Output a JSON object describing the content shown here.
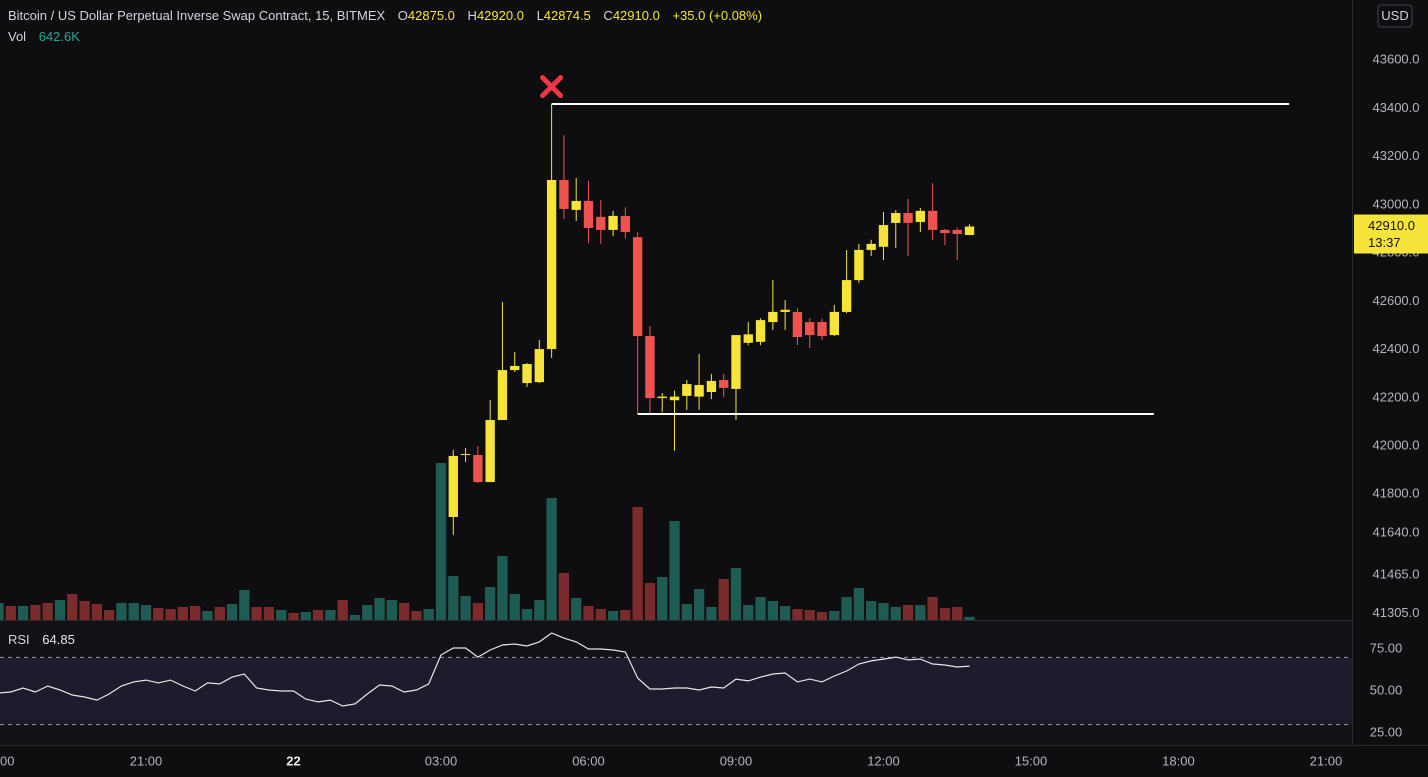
{
  "chart_data": {
    "type": "candlestick",
    "title": "Bitcoin / US Dollar Perpetual Inverse Swap Contract, 15, BITMEX",
    "ohlc_legend": [
      {
        "key": "O",
        "value": "42875.0"
      },
      {
        "key": "H",
        "value": "42920.0"
      },
      {
        "key": "L",
        "value": "42874.5"
      },
      {
        "key": "C",
        "value": "42910.0"
      }
    ],
    "change": "+35.0 (+0.08%)",
    "currency": "USD",
    "up_color": "#f7e43a",
    "down_color": "#ef5350",
    "x": [
      27.25,
      27.5,
      27.75,
      28,
      28.25,
      28.5,
      28.75,
      29,
      29.25,
      29.5,
      29.75,
      30,
      30.25,
      30.5,
      30.75,
      31,
      31.25,
      31.5,
      31.75,
      32,
      32.25,
      32.5,
      32.75,
      33,
      33.25,
      33.5,
      33.75,
      34,
      34.25,
      34.5,
      34.75,
      35,
      35.25,
      35.5,
      35.75,
      36,
      36.25,
      36.5,
      36.75,
      37,
      37.25,
      37.5,
      37.75
    ],
    "open": [
      41706,
      41963,
      41963,
      41851,
      42108,
      42315,
      42261,
      42265,
      42402,
      43103,
      42979,
      43016,
      42950,
      42896,
      42954,
      42866,
      42456,
      42199,
      42190,
      42208,
      42205,
      42224,
      42274,
      42237,
      42428,
      42432,
      42514,
      42556,
      42556,
      42514,
      42514,
      42460,
      42556,
      42688,
      42813,
      42826,
      42925,
      42966,
      42929,
      42975,
      42896,
      42896,
      42875
    ],
    "high": [
      41984,
      41992,
      42000,
      42191,
      42597,
      42390,
      42344,
      42440,
      43418,
      43289,
      43111,
      43099,
      43020,
      42975,
      42990,
      42887,
      42497,
      42220,
      42230,
      42274,
      42382,
      42299,
      42299,
      42460,
      42514,
      42530,
      42688,
      42605,
      42572,
      42530,
      42528,
      42585,
      42813,
      42838,
      42855,
      42970,
      42978,
      43024,
      42987,
      43090,
      42900,
      42905,
      42920
    ],
    "low": [
      41632,
      41934,
      41847,
      41851,
      42108,
      42307,
      42245,
      42261,
      42365,
      42941,
      42933,
      42842,
      42838,
      42870,
      42860,
      42133,
      42137,
      42140,
      41980,
      42150,
      42150,
      42195,
      42203,
      42108,
      42418,
      42418,
      42481,
      42481,
      42419,
      42406,
      42440,
      42456,
      42550,
      42676,
      42788,
      42771,
      42821,
      42788,
      42887,
      42854,
      42833,
      42771,
      42874.5
    ],
    "close": [
      41959,
      41967,
      41851,
      42108,
      42315,
      42332,
      42340,
      42402,
      43103,
      42983,
      43016,
      42904,
      42896,
      42954,
      42887,
      42456,
      42199,
      42205,
      42205,
      42257,
      42253,
      42270,
      42241,
      42460,
      42463,
      42522,
      42556,
      42565,
      42452,
      42460,
      42456,
      42556,
      42688,
      42813,
      42838,
      42916,
      42966,
      42925,
      42975,
      42896,
      42883,
      42879,
      42910
    ],
    "xlim": [
      18.03,
      45.53
    ],
    "xticks": [
      {
        "value": 18,
        "label": "00"
      },
      {
        "value": 21,
        "label": "21:00"
      },
      {
        "value": 24,
        "label": "22"
      },
      {
        "value": 27,
        "label": "03:00"
      },
      {
        "value": 30,
        "label": "06:00"
      },
      {
        "value": 33,
        "label": "09:00"
      },
      {
        "value": 36,
        "label": "12:00"
      },
      {
        "value": 39,
        "label": "15:00"
      },
      {
        "value": 42,
        "label": "18:00"
      },
      {
        "value": 45,
        "label": "21:00"
      }
    ],
    "ylim": [
      41279,
      43849
    ],
    "yticks": [
      {
        "value": 43600,
        "label": "43600.0"
      },
      {
        "value": 43400,
        "label": "43400.0"
      },
      {
        "value": 43200,
        "label": "43200.0"
      },
      {
        "value": 43000,
        "label": "43000.0"
      },
      {
        "value": 42800,
        "label": "42800.0"
      },
      {
        "value": 42600,
        "label": "42600.0"
      },
      {
        "value": 42400,
        "label": "42400.0"
      },
      {
        "value": 42200,
        "label": "42200.0"
      },
      {
        "value": 42000,
        "label": "42000.0"
      },
      {
        "value": 41800,
        "label": "41800.0"
      },
      {
        "value": 41640,
        "label": "41640.0"
      },
      {
        "value": 41465,
        "label": "41465.0"
      },
      {
        "value": 41305,
        "label": "41305.0"
      }
    ],
    "last_price": {
      "value": 42910,
      "label": "42910.0"
    },
    "countdown": "13:37",
    "levels": [
      {
        "price": 43418,
        "from": 29.25,
        "to": 44.25
      },
      {
        "price": 42133,
        "from": 31,
        "to": 41.5
      }
    ],
    "marker": {
      "x": 29.25,
      "price": 43490,
      "color": "#f23645"
    },
    "time": [
      18,
      18.25,
      18.5,
      18.75,
      19,
      19.25,
      19.5,
      19.75,
      20,
      20.25,
      20.5,
      20.75,
      21,
      21.25,
      21.5,
      21.75,
      22,
      22.25,
      22.5,
      22.75,
      23,
      23.25,
      23.5,
      23.75,
      24,
      24.25,
      24.5,
      24.75,
      25,
      25.25,
      25.5,
      25.75,
      26,
      26.25,
      26.5,
      26.75,
      27,
      27.25,
      27.5,
      27.75,
      28,
      28.25,
      28.5,
      28.75,
      29,
      29.25,
      29.5,
      29.75,
      30,
      30.25,
      30.5,
      30.75,
      31,
      31.25,
      31.5,
      31.75,
      32,
      32.25,
      32.5,
      32.75,
      33,
      33.25,
      33.5,
      33.75,
      34,
      34.25,
      34.5,
      34.75,
      35,
      35.25,
      35.5,
      35.75,
      36,
      36.25,
      36.5,
      36.75,
      37,
      37.25,
      37.5,
      37.75
    ],
    "volume": {
      "label": "Vol",
      "value_label": "642.6K",
      "vlim": [
        0,
        124000000
      ],
      "values": [
        3400000,
        2800000,
        2800000,
        3000000,
        3400000,
        4000000,
        5200000,
        3800000,
        3200000,
        2000000,
        3400000,
        3400000,
        3000000,
        2400000,
        2200000,
        2600000,
        2800000,
        1800000,
        2600000,
        3200000,
        6000000,
        2600000,
        2600000,
        2000000,
        1400000,
        1600000,
        2000000,
        2000000,
        4000000,
        1000000,
        3000000,
        4400000,
        4000000,
        3400000,
        1800000,
        2200000,
        31400000,
        8800000,
        4800000,
        3400000,
        6600000,
        12800000,
        5200000,
        2200000,
        4000000,
        24400000,
        9400000,
        4400000,
        2800000,
        2200000,
        1800000,
        2000000,
        22600000,
        7400000,
        8600000,
        19800000,
        3200000,
        6200000,
        2600000,
        8200000,
        10400000,
        3000000,
        4600000,
        3800000,
        2800000,
        2200000,
        2000000,
        1600000,
        1800000,
        4600000,
        6400000,
        3800000,
        3400000,
        2600000,
        3000000,
        3000000,
        4600000,
        2400000,
        2600000,
        642600
      ],
      "colors": [
        "#1e5b53",
        "#7a2b2b",
        "#1e5b53",
        "#7a2b2b",
        "#7a2b2b",
        "#1e5b53",
        "#7a2b2b",
        "#7a2b2b",
        "#7a2b2b",
        "#7a2b2b",
        "#1e5b53",
        "#1e5b53",
        "#1e5b53",
        "#7a2b2b",
        "#7a2b2b",
        "#7a2b2b",
        "#7a2b2b",
        "#1e5b53",
        "#7a2b2b",
        "#1e5b53",
        "#1e5b53",
        "#7a2b2b",
        "#7a2b2b",
        "#1e5b53",
        "#7a2b2b",
        "#1e5b53",
        "#7a2b2b",
        "#1e5b53",
        "#7a2b2b",
        "#1e5b53",
        "#1e5b53",
        "#1e5b53",
        "#1e5b53",
        "#7a2b2b",
        "#7a2b2b",
        "#1e5b53",
        "#1e5b53",
        "#1e5b53",
        "#1e5b53",
        "#7a2b2b",
        "#1e5b53",
        "#1e5b53",
        "#1e5b53",
        "#1e5b53",
        "#1e5b53",
        "#1e5b53",
        "#7a2b2b",
        "#1e5b53",
        "#7a2b2b",
        "#7a2b2b",
        "#1e5b53",
        "#7a2b2b",
        "#7a2b2b",
        "#7a2b2b",
        "#1e5b53",
        "#1e5b53",
        "#1e5b53",
        "#1e5b53",
        "#1e5b53",
        "#7a2b2b",
        "#1e5b53",
        "#1e5b53",
        "#1e5b53",
        "#1e5b53",
        "#1e5b53",
        "#7a2b2b",
        "#7a2b2b",
        "#7a2b2b",
        "#1e5b53",
        "#1e5b53",
        "#1e5b53",
        "#1e5b53",
        "#1e5b53",
        "#1e5b53",
        "#7a2b2b",
        "#1e5b53",
        "#7a2b2b",
        "#7a2b2b",
        "#7a2b2b",
        "#1e5b53"
      ]
    },
    "rsi": {
      "label": "RSI",
      "value_label": "64.85",
      "lim": [
        17.86,
        92.26
      ],
      "ticks": [
        {
          "value": 75,
          "label": "75.00"
        },
        {
          "value": 50,
          "label": "50.00"
        },
        {
          "value": 25,
          "label": "25.00"
        }
      ],
      "bands": [
        70,
        30
      ],
      "values": [
        48.8,
        49.4,
        51.8,
        49.4,
        53.0,
        50.6,
        47.6,
        46.4,
        44.6,
        48.2,
        53.0,
        55.4,
        56.5,
        54.8,
        56.5,
        53.0,
        50.0,
        54.8,
        54.2,
        58.3,
        60.1,
        51.8,
        50.6,
        50.0,
        50.0,
        45.2,
        43.5,
        44.6,
        41.1,
        42.3,
        48.2,
        53.6,
        53.0,
        49.4,
        50.6,
        54.2,
        71.4,
        75.6,
        75.6,
        70.2,
        74.4,
        77.4,
        78.0,
        76.8,
        79.2,
        84.5,
        81.5,
        79.2,
        75.0,
        75.0,
        74.4,
        73.2,
        57.7,
        51.2,
        51.2,
        51.8,
        51.8,
        50.6,
        52.4,
        51.8,
        57.1,
        56.0,
        58.3,
        60.1,
        60.7,
        55.4,
        57.1,
        55.4,
        58.9,
        61.9,
        66.1,
        67.9,
        69.0,
        70.2,
        68.5,
        69.0,
        66.1,
        65.5,
        64.3,
        64.85
      ]
    }
  }
}
